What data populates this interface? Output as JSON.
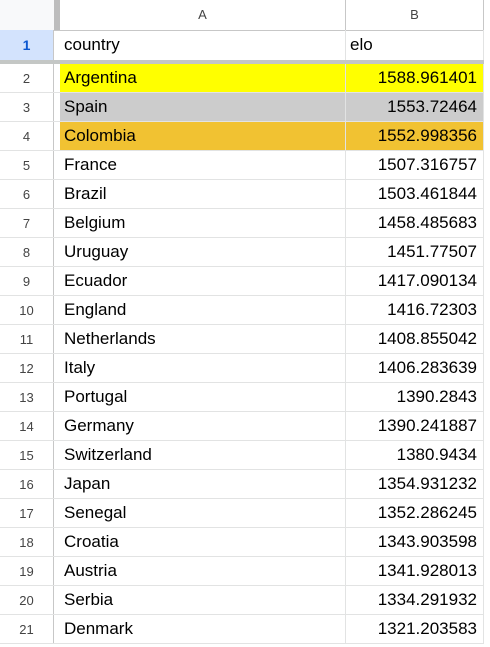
{
  "columns": {
    "a": "A",
    "b": "B"
  },
  "header": {
    "num": "1",
    "country": "country",
    "elo": "elo"
  },
  "rows": [
    {
      "num": "2",
      "country": "Argentina",
      "elo": "1588.961401",
      "fill": "#ffff00"
    },
    {
      "num": "3",
      "country": "Spain",
      "elo": "1553.72464",
      "fill": "#cccccc"
    },
    {
      "num": "4",
      "country": "Colombia",
      "elo": "1552.998356",
      "fill": "#f1c232"
    },
    {
      "num": "5",
      "country": "France",
      "elo": "1507.316757",
      "fill": ""
    },
    {
      "num": "6",
      "country": "Brazil",
      "elo": "1503.461844",
      "fill": ""
    },
    {
      "num": "7",
      "country": "Belgium",
      "elo": "1458.485683",
      "fill": ""
    },
    {
      "num": "8",
      "country": "Uruguay",
      "elo": "1451.77507",
      "fill": ""
    },
    {
      "num": "9",
      "country": "Ecuador",
      "elo": "1417.090134",
      "fill": ""
    },
    {
      "num": "10",
      "country": "England",
      "elo": "1416.72303",
      "fill": ""
    },
    {
      "num": "11",
      "country": "Netherlands",
      "elo": "1408.855042",
      "fill": ""
    },
    {
      "num": "12",
      "country": "Italy",
      "elo": "1406.283639",
      "fill": ""
    },
    {
      "num": "13",
      "country": "Portugal",
      "elo": "1390.2843",
      "fill": ""
    },
    {
      "num": "14",
      "country": "Germany",
      "elo": "1390.241887",
      "fill": ""
    },
    {
      "num": "15",
      "country": "Switzerland",
      "elo": "1380.9434",
      "fill": ""
    },
    {
      "num": "16",
      "country": "Japan",
      "elo": "1354.931232",
      "fill": ""
    },
    {
      "num": "17",
      "country": "Senegal",
      "elo": "1352.286245",
      "fill": ""
    },
    {
      "num": "18",
      "country": "Croatia",
      "elo": "1343.903598",
      "fill": ""
    },
    {
      "num": "19",
      "country": "Austria",
      "elo": "1341.928013",
      "fill": ""
    },
    {
      "num": "20",
      "country": "Serbia",
      "elo": "1334.291932",
      "fill": ""
    },
    {
      "num": "21",
      "country": "Denmark",
      "elo": "1321.203583",
      "fill": ""
    }
  ]
}
